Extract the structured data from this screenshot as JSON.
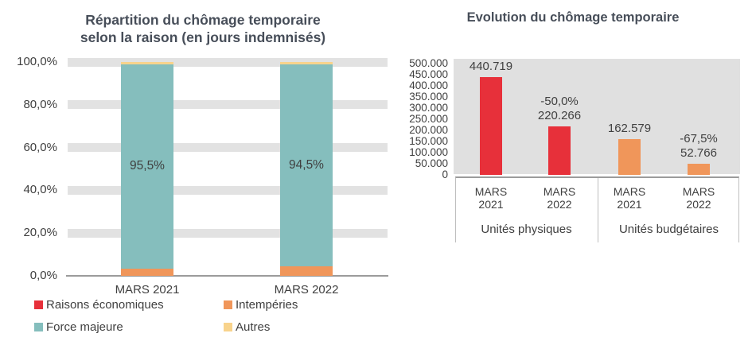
{
  "colors": {
    "red": "#E7303A",
    "orange": "#F0965A",
    "teal": "#85BEBD",
    "yellow": "#F8D38C",
    "plot_background": "#E0E0E0",
    "gridline_band": "#E2E2E2",
    "axis_line": "#9B9B9B",
    "table_border": "#BFBFBF",
    "title_text": "#474E59",
    "label_text": "#404040"
  },
  "chart_data": [
    {
      "type": "bar",
      "subtype": "stacked-100-percent",
      "title_lines": [
        "Répartition du chômage temporaire",
        "selon la raison (en jours indemnisés)"
      ],
      "categories": [
        "MARS 2021",
        "MARS 2022"
      ],
      "series": [
        {
          "name": "Raisons économiques",
          "color": "#E7303A",
          "values": [
            0.0,
            0.0
          ]
        },
        {
          "name": "Intempéries",
          "color": "#F0965A",
          "values": [
            3.5,
            4.5
          ]
        },
        {
          "name": "Force majeure",
          "color": "#85BEBD",
          "values": [
            95.5,
            94.5
          ]
        },
        {
          "name": "Autres",
          "color": "#F8D38C",
          "values": [
            1.0,
            1.0
          ]
        }
      ],
      "bar_value_labels": [
        "95,5%",
        "94,5%"
      ],
      "yticks": [
        "0,0%",
        "20,0%",
        "40,0%",
        "60,0%",
        "80,0%",
        "100,0%"
      ],
      "ylim": [
        0,
        100
      ],
      "ytick_step_percent": 20,
      "grid": true,
      "legend_position": "bottom"
    },
    {
      "type": "bar",
      "title": "Evolution du chômage temporaire",
      "ylim": [
        0,
        500000
      ],
      "yticks": [
        "500.000",
        "450.000",
        "400.000",
        "350.000",
        "300.000",
        "250.000",
        "200.000",
        "150.000",
        "100.000",
        "50.000",
        "0"
      ],
      "grid": false,
      "groups": [
        {
          "label": "Unités physiques",
          "color": "#E7303A",
          "bars": [
            {
              "category": "MARS 2021",
              "value": 440719,
              "label_lines": [
                "440.719"
              ]
            },
            {
              "category": "MARS 2022",
              "value": 220266,
              "label_lines": [
                "-50,0%",
                "220.266"
              ]
            }
          ]
        },
        {
          "label": "Unités budgétaires",
          "color": "#F0965A",
          "bars": [
            {
              "category": "MARS 2021",
              "value": 162579,
              "label_lines": [
                "162.579"
              ]
            },
            {
              "category": "MARS 2022",
              "value": 52766,
              "label_lines": [
                "-67,5%",
                "52.766"
              ]
            }
          ]
        }
      ]
    }
  ]
}
